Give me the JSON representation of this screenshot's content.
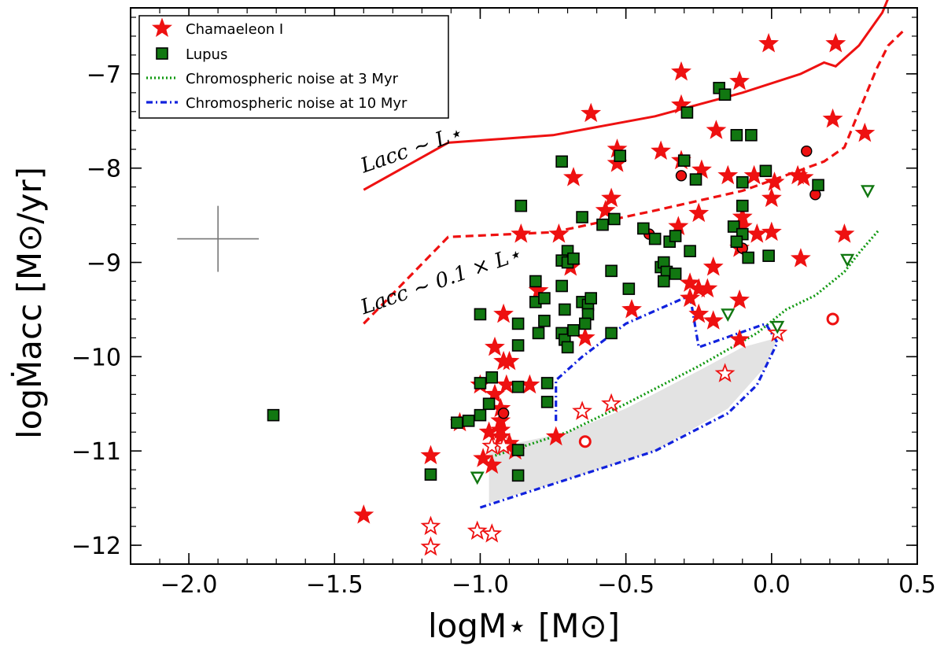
{
  "chart_data": {
    "type": "scatter",
    "xlabel": "logM⋆ [M⊙]",
    "ylabel": "logṀacc [M⊙/yr]",
    "xlim": [
      -2.2,
      0.5
    ],
    "ylim": [
      -12.2,
      -6.3
    ],
    "x_ticks": [
      "−2.0",
      "−1.5",
      "−1.0",
      "−0.5",
      "0.0",
      "0.5"
    ],
    "y_ticks": [
      "−7",
      "−8",
      "−9",
      "−10",
      "−11",
      "−12"
    ],
    "x_tick_values": [
      -2.0,
      -1.5,
      -1.0,
      -0.5,
      0.0,
      0.5
    ],
    "y_tick_values": [
      -7,
      -8,
      -9,
      -10,
      -11,
      -12
    ],
    "legend_position": "top-left",
    "legend": [
      {
        "label": "Chamaeleon I",
        "marker": "star",
        "color": "#ee1111"
      },
      {
        "label": "Lupus",
        "marker": "square",
        "color": "#117711"
      },
      {
        "label": "Chromospheric noise at 3 Myr",
        "marker": "dotted-line",
        "color": "#119911"
      },
      {
        "label": "Chromospheric noise at 10 Myr",
        "marker": "dashdot-line",
        "color": "#1122dd"
      }
    ],
    "annotations": [
      {
        "text": "Lacc ∼ L⋆",
        "x": -1.4,
        "y": -8.05,
        "angle": -19
      },
      {
        "text": "Lacc ∼ 0.1 × L⋆",
        "x": -1.4,
        "y": -9.55,
        "angle": -19
      }
    ],
    "series": [
      {
        "name": "Chamaeleon I",
        "marker": "star",
        "filled": true,
        "color": "#ee1111",
        "points": [
          [
            -0.62,
            -7.42
          ],
          [
            -0.31,
            -6.98
          ],
          [
            -0.01,
            -6.68
          ],
          [
            0.22,
            -6.68
          ],
          [
            -0.31,
            -7.33
          ],
          [
            -0.11,
            -7.08
          ],
          [
            0.21,
            -7.48
          ],
          [
            0.32,
            -7.63
          ],
          [
            -0.19,
            -7.6
          ],
          [
            -0.38,
            -7.82
          ],
          [
            -0.53,
            -7.8
          ],
          [
            -0.53,
            -7.95
          ],
          [
            -0.68,
            -8.1
          ],
          [
            -0.31,
            -7.92
          ],
          [
            -0.24,
            -8.02
          ],
          [
            -0.06,
            -8.08
          ],
          [
            -0.15,
            -8.08
          ],
          [
            0.01,
            -8.15
          ],
          [
            0.09,
            -8.08
          ],
          [
            0.11,
            -8.1
          ],
          [
            0.0,
            -8.32
          ],
          [
            -0.55,
            -8.32
          ],
          [
            -0.57,
            -8.45
          ],
          [
            -0.25,
            -8.48
          ],
          [
            -0.32,
            -8.62
          ],
          [
            -0.1,
            -8.52
          ],
          [
            -0.1,
            -8.62
          ],
          [
            -0.86,
            -8.7
          ],
          [
            -0.73,
            -8.7
          ],
          [
            0.0,
            -8.68
          ],
          [
            -0.05,
            -8.7
          ],
          [
            0.25,
            -8.7
          ],
          [
            -0.11,
            -8.85
          ],
          [
            -0.69,
            -9.05
          ],
          [
            0.1,
            -8.96
          ],
          [
            -0.2,
            -9.05
          ],
          [
            -0.28,
            -9.22
          ],
          [
            -0.25,
            -9.28
          ],
          [
            -0.28,
            -9.38
          ],
          [
            -0.22,
            -9.28
          ],
          [
            -0.8,
            -9.3
          ],
          [
            -0.11,
            -9.4
          ],
          [
            -0.48,
            -9.5
          ],
          [
            -0.25,
            -9.55
          ],
          [
            -0.2,
            -9.62
          ],
          [
            -0.92,
            -9.55
          ],
          [
            -0.64,
            -9.8
          ],
          [
            -0.95,
            -9.9
          ],
          [
            -0.9,
            -10.05
          ],
          [
            -0.92,
            -10.05
          ],
          [
            -0.11,
            -9.82
          ],
          [
            -0.91,
            -10.3
          ],
          [
            -0.83,
            -10.3
          ],
          [
            -1.0,
            -10.3
          ],
          [
            -0.95,
            -10.4
          ],
          [
            -0.93,
            -10.55
          ],
          [
            -0.93,
            -10.68
          ],
          [
            -0.93,
            -10.78
          ],
          [
            -0.93,
            -10.85
          ],
          [
            -0.9,
            -10.92
          ],
          [
            -0.97,
            -10.8
          ],
          [
            -0.99,
            -11.08
          ],
          [
            -0.96,
            -11.15
          ],
          [
            -1.07,
            -10.7
          ],
          [
            -1.17,
            -11.05
          ],
          [
            -1.4,
            -11.68
          ],
          [
            -0.74,
            -10.85
          ],
          [
            -0.88,
            -11.0
          ]
        ]
      },
      {
        "name": "",
        "marker": "star",
        "filled": false,
        "color": "#ee1111",
        "points": [
          [
            -1.17,
            -11.8
          ],
          [
            -1.17,
            -12.02
          ],
          [
            -1.01,
            -11.85
          ],
          [
            -0.96,
            -11.88
          ],
          [
            -0.96,
            -10.95
          ],
          [
            -0.92,
            -10.95
          ],
          [
            -0.65,
            -10.58
          ],
          [
            -0.55,
            -10.5
          ],
          [
            -0.16,
            -10.18
          ],
          [
            0.02,
            -9.75
          ]
        ]
      },
      {
        "name": "",
        "marker": "circle",
        "filled": true,
        "color": "#ee1111",
        "points": [
          [
            0.12,
            -7.82
          ],
          [
            -0.31,
            -8.08
          ],
          [
            0.15,
            -8.28
          ],
          [
            -0.42,
            -8.7
          ],
          [
            -0.1,
            -8.85
          ],
          [
            -0.92,
            -10.6
          ]
        ]
      },
      {
        "name": "",
        "marker": "circle",
        "filled": false,
        "color": "#ee1111",
        "points": [
          [
            0.21,
            -9.6
          ],
          [
            -0.64,
            -10.9
          ]
        ]
      },
      {
        "name": "Lupus",
        "marker": "square",
        "filled": true,
        "color": "#117711",
        "points": [
          [
            -1.71,
            -10.62
          ],
          [
            -1.17,
            -11.25
          ],
          [
            -1.08,
            -10.7
          ],
          [
            -1.04,
            -10.68
          ],
          [
            -1.0,
            -10.62
          ],
          [
            -0.97,
            -10.5
          ],
          [
            -0.96,
            -10.22
          ],
          [
            -1.0,
            -10.28
          ],
          [
            -1.0,
            -9.55
          ],
          [
            -0.86,
            -8.4
          ],
          [
            -0.87,
            -9.65
          ],
          [
            -0.87,
            -9.88
          ],
          [
            -0.87,
            -10.32
          ],
          [
            -0.87,
            -10.99
          ],
          [
            -0.87,
            -11.26
          ],
          [
            -0.77,
            -10.28
          ],
          [
            -0.77,
            -10.48
          ],
          [
            -0.72,
            -7.93
          ],
          [
            -0.65,
            -8.52
          ],
          [
            -0.7,
            -8.88
          ],
          [
            -0.72,
            -8.98
          ],
          [
            -0.7,
            -9.0
          ],
          [
            -0.68,
            -8.96
          ],
          [
            -0.81,
            -9.2
          ],
          [
            -0.81,
            -9.42
          ],
          [
            -0.78,
            -9.38
          ],
          [
            -0.72,
            -9.25
          ],
          [
            -0.78,
            -9.62
          ],
          [
            -0.72,
            -9.75
          ],
          [
            -0.71,
            -9.82
          ],
          [
            -0.68,
            -9.72
          ],
          [
            -0.71,
            -9.5
          ],
          [
            -0.65,
            -9.42
          ],
          [
            -0.63,
            -9.45
          ],
          [
            -0.63,
            -9.55
          ],
          [
            -0.64,
            -9.65
          ],
          [
            -0.62,
            -9.38
          ],
          [
            -0.8,
            -9.75
          ],
          [
            -0.7,
            -9.9
          ],
          [
            -0.58,
            -8.6
          ],
          [
            -0.54,
            -8.54
          ],
          [
            -0.52,
            -7.87
          ],
          [
            -0.55,
            -9.09
          ],
          [
            -0.55,
            -9.75
          ],
          [
            -0.49,
            -9.28
          ],
          [
            -0.44,
            -8.64
          ],
          [
            -0.4,
            -8.75
          ],
          [
            -0.38,
            -9.05
          ],
          [
            -0.37,
            -9.0
          ],
          [
            -0.36,
            -9.1
          ],
          [
            -0.35,
            -8.78
          ],
          [
            -0.33,
            -8.72
          ],
          [
            -0.33,
            -9.12
          ],
          [
            -0.3,
            -7.92
          ],
          [
            -0.28,
            -8.88
          ],
          [
            -0.26,
            -8.12
          ],
          [
            -0.29,
            -7.41
          ],
          [
            -0.18,
            -7.15
          ],
          [
            -0.16,
            -7.22
          ],
          [
            -0.12,
            -7.65
          ],
          [
            -0.07,
            -7.65
          ],
          [
            -0.1,
            -8.15
          ],
          [
            -0.1,
            -8.4
          ],
          [
            -0.13,
            -8.62
          ],
          [
            -0.1,
            -8.7
          ],
          [
            -0.12,
            -8.78
          ],
          [
            -0.08,
            -8.95
          ],
          [
            -0.02,
            -8.03
          ],
          [
            0.16,
            -8.18
          ],
          [
            -0.01,
            -8.93
          ],
          [
            -0.37,
            -9.2
          ]
        ]
      },
      {
        "name": "",
        "marker": "triangle-down",
        "filled": false,
        "color": "#117711",
        "points": [
          [
            -1.01,
            -11.28
          ],
          [
            -0.15,
            -9.55
          ],
          [
            0.02,
            -9.68
          ],
          [
            0.26,
            -8.97
          ],
          [
            0.33,
            -8.24
          ]
        ]
      }
    ],
    "lines": [
      {
        "name": "Lacc ~ L⋆",
        "style": "solid",
        "color": "#ee1111",
        "points": [
          [
            -1.4,
            -8.23
          ],
          [
            -1.11,
            -7.73
          ],
          [
            -0.75,
            -7.65
          ],
          [
            -0.4,
            -7.45
          ],
          [
            -0.1,
            -7.2
          ],
          [
            0.1,
            -7.0
          ],
          [
            0.18,
            -6.88
          ],
          [
            0.22,
            -6.92
          ],
          [
            0.3,
            -6.7
          ],
          [
            0.38,
            -6.35
          ],
          [
            0.4,
            -6.2
          ]
        ]
      },
      {
        "name": "Lacc ~ 0.1 × L⋆",
        "style": "dashed",
        "color": "#ee1111",
        "points": [
          [
            -1.4,
            -9.65
          ],
          [
            -1.11,
            -8.73
          ],
          [
            -0.75,
            -8.68
          ],
          [
            -0.4,
            -8.45
          ],
          [
            -0.1,
            -8.24
          ],
          [
            0.1,
            -8.02
          ],
          [
            0.18,
            -7.93
          ],
          [
            0.25,
            -7.78
          ],
          [
            0.3,
            -7.4
          ],
          [
            0.36,
            -6.95
          ],
          [
            0.4,
            -6.7
          ],
          [
            0.45,
            -6.55
          ]
        ]
      },
      {
        "name": "Chromospheric noise at 3 Myr",
        "style": "dotted",
        "color": "#119911",
        "points": [
          [
            -1.0,
            -11.1
          ],
          [
            -0.7,
            -10.8
          ],
          [
            -0.5,
            -10.5
          ],
          [
            -0.25,
            -10.1
          ],
          [
            -0.05,
            -9.75
          ],
          [
            0.05,
            -9.5
          ],
          [
            0.15,
            -9.35
          ],
          [
            0.25,
            -9.1
          ],
          [
            0.3,
            -8.9
          ],
          [
            0.37,
            -8.65
          ]
        ]
      },
      {
        "name": "Chromospheric noise at 10 Myr",
        "style": "dashdot",
        "color": "#1122dd",
        "points": [
          [
            -1.0,
            -11.6
          ],
          [
            -0.7,
            -11.3
          ],
          [
            -0.4,
            -11.0
          ],
          [
            -0.15,
            -10.6
          ],
          [
            -0.05,
            -10.3
          ],
          [
            0.02,
            -9.85
          ],
          [
            -0.02,
            -9.65
          ],
          [
            -0.25,
            -9.9
          ],
          [
            -0.28,
            -9.35
          ],
          [
            -0.5,
            -9.65
          ],
          [
            -0.65,
            -10.0
          ],
          [
            -0.74,
            -10.25
          ],
          [
            -0.74,
            -10.7
          ]
        ]
      }
    ],
    "shaded_region": [
      [
        -0.97,
        -10.98
      ],
      [
        -0.7,
        -10.8
      ],
      [
        -0.5,
        -10.55
      ],
      [
        -0.25,
        -10.15
      ],
      [
        -0.1,
        -9.9
      ],
      [
        0.02,
        -9.8
      ],
      [
        -0.02,
        -10.1
      ],
      [
        -0.15,
        -10.55
      ],
      [
        -0.4,
        -11.0
      ],
      [
        -0.7,
        -11.3
      ],
      [
        -0.97,
        -11.55
      ]
    ],
    "error_bar": {
      "x": -1.9,
      "y": -8.75,
      "x_err": 0.14,
      "y_err": 0.35
    }
  }
}
